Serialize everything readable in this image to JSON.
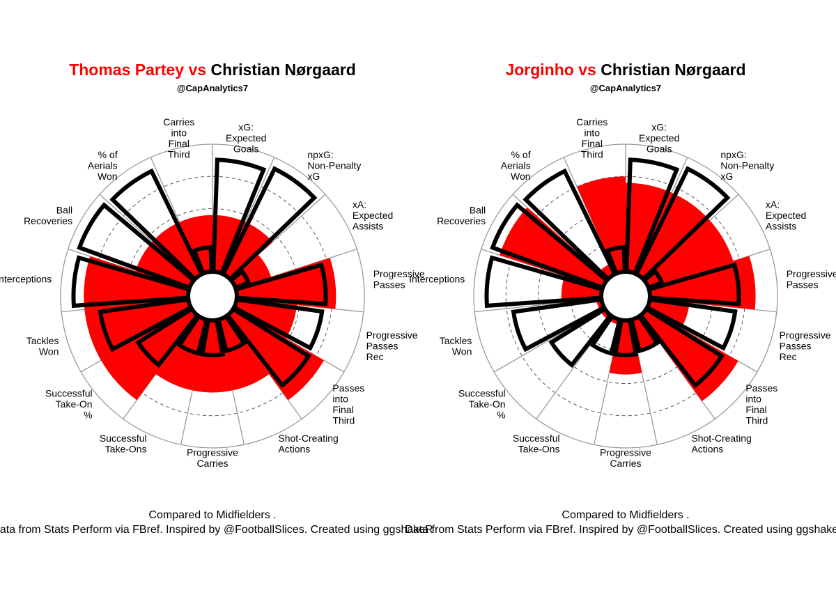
{
  "page": {
    "colors": {
      "player_fill": "#ff0000",
      "outline": "#000000",
      "grid": "#999999",
      "background": "#ffffff"
    }
  },
  "chart_data": [
    {
      "type": "polar_bar",
      "title": {
        "player": "Thomas Partey",
        "vs": " vs ",
        "comparison": "Christian Nørgaard"
      },
      "subtitle": "@CapAnalytics7",
      "caption_line1": "Compared to Midfielders .",
      "caption_line2": "Data from Stats Perform via FBref. Inspired by @FootballSlices. Created using ggshakeR",
      "categories": [
        [
          "xG:",
          "Expected",
          "Goals"
        ],
        [
          "npxG:",
          "Non-Penalty",
          "xG"
        ],
        [
          "xA:",
          "Expected",
          "Assists"
        ],
        [
          "Progressive",
          "Passes"
        ],
        [
          "Progressive",
          "Passes",
          "Rec"
        ],
        [
          "Passes",
          "into",
          "Final",
          "Third"
        ],
        [
          "Shot-Creating",
          "Actions"
        ],
        [
          "Progressive",
          "Carries"
        ],
        [
          "Successful",
          "Take-Ons"
        ],
        [
          "Successful",
          "Take-On",
          "%"
        ],
        [
          "Tackles",
          "Won"
        ],
        [
          "Interceptions"
        ],
        [
          "Ball",
          "Recoveries"
        ],
        [
          "% of",
          "Aerials",
          "Won"
        ],
        [
          "Carries",
          "into",
          "Final",
          "Third"
        ]
      ],
      "series": [
        {
          "name": "Thomas Partey",
          "style": "filled",
          "color": "#ff0000",
          "values": [
            45,
            45,
            30,
            78,
            48,
            82,
            57,
            57,
            57,
            82,
            82,
            82,
            45,
            45,
            45
          ]
        },
        {
          "name": "Christian Nørgaard",
          "style": "outline",
          "color": "#000000",
          "values": [
            88,
            92,
            12,
            70,
            68,
            70,
            26,
            28,
            28,
            50,
            70,
            90,
            92,
            90,
            20
          ]
        }
      ],
      "ylim": [
        0,
        100
      ],
      "gridlines": [
        25,
        50,
        75,
        100
      ]
    },
    {
      "type": "polar_bar",
      "title": {
        "player": "Jorginho",
        "vs": " vs ",
        "comparison": "Christian Nørgaard"
      },
      "subtitle": "@CapAnalytics7",
      "caption_line1": "Compared to Midfielders .",
      "caption_line2": "Data from Stats Perform via FBref. Inspired by @FootballSlices. Created using ggshakeR",
      "categories": [
        [
          "xG:",
          "Expected",
          "Goals"
        ],
        [
          "npxG:",
          "Non-Penalty",
          "xG"
        ],
        [
          "xA:",
          "Expected",
          "Assists"
        ],
        [
          "Progressive",
          "Passes"
        ],
        [
          "Progressive",
          "Passes",
          "Rec"
        ],
        [
          "Passes",
          "into",
          "Final",
          "Third"
        ],
        [
          "Shot-Creating",
          "Actions"
        ],
        [
          "Progressive",
          "Carries"
        ],
        [
          "Successful",
          "Take-Ons"
        ],
        [
          "Successful",
          "Take-On",
          "%"
        ],
        [
          "Tackles",
          "Won"
        ],
        [
          "Interceptions"
        ],
        [
          "Ball",
          "Recoveries"
        ],
        [
          "% of",
          "Aerials",
          "Won"
        ],
        [
          "Carries",
          "into",
          "Final",
          "Third"
        ]
      ],
      "series": [
        {
          "name": "Jorginho",
          "style": "filled",
          "color": "#ff0000",
          "values": [
            70,
            70,
            70,
            83,
            32,
            83,
            25,
            43,
            5,
            5,
            5,
            32,
            85,
            10,
            75
          ]
        },
        {
          "name": "Christian Nørgaard",
          "style": "outline",
          "color": "#000000",
          "values": [
            88,
            92,
            12,
            70,
            68,
            70,
            26,
            28,
            28,
            50,
            70,
            90,
            92,
            90,
            20
          ]
        }
      ],
      "ylim": [
        0,
        100
      ],
      "gridlines": [
        25,
        50,
        75,
        100
      ]
    }
  ]
}
